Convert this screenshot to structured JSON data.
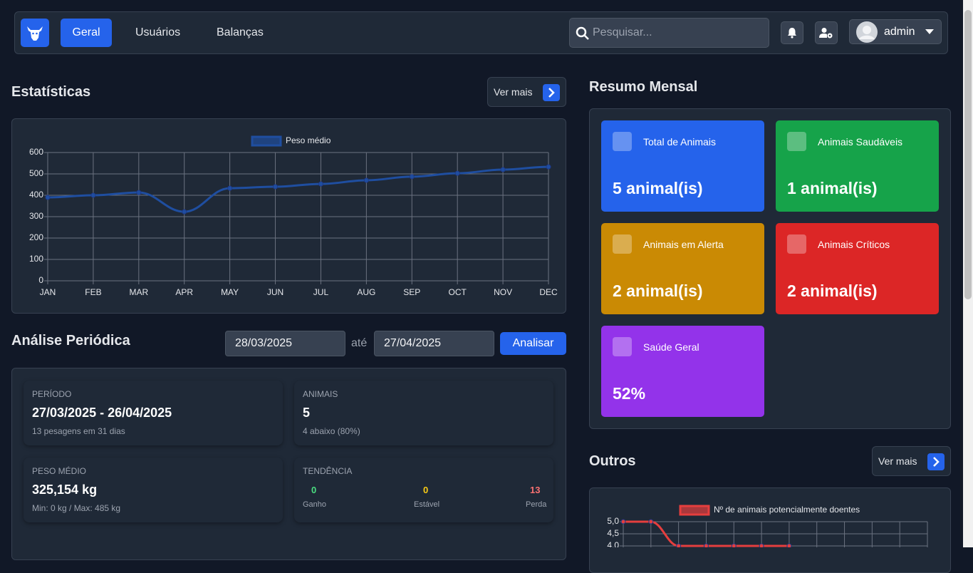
{
  "nav": {
    "links": [
      "Geral",
      "Usuários",
      "Balanças"
    ],
    "search_placeholder": "Pesquisar...",
    "user": "admin"
  },
  "statistics": {
    "title": "Estatísticas",
    "button": "Ver mais"
  },
  "summary": {
    "title": "Resumo Mensal",
    "cards": [
      {
        "label": "Total de Animais",
        "value": "5 animal(is)"
      },
      {
        "label": "Animais Saudáveis",
        "value": "1 animal(is)"
      },
      {
        "label": "Animais em Alerta",
        "value": "2 animal(is)"
      },
      {
        "label": "Animais Críticos",
        "value": "2 animal(is)"
      },
      {
        "label": "Saúde Geral",
        "value": "52%"
      }
    ]
  },
  "analysis": {
    "title": "Análise Periódica",
    "start": "28/03/2025",
    "separator": "até",
    "end": "27/04/2025",
    "button": "Analisar",
    "stats": [
      {
        "label": "PERÍODO",
        "value": "27/03/2025 - 26/04/2025",
        "note": "13 pesagens em 31 dias"
      },
      {
        "label": "ANIMAIS",
        "value": "5",
        "note": "4 abaixo (80%)"
      },
      {
        "label": "PESO MÉDIO",
        "value": "325,154 kg",
        "note": "Min: 0 kg / Max: 485 kg"
      }
    ],
    "trend": {
      "label": "TENDÊNCIA",
      "items": [
        {
          "value": "0",
          "label": "Ganho"
        },
        {
          "value": "0",
          "label": "Estável"
        },
        {
          "value": "13",
          "label": "Perda"
        }
      ]
    }
  },
  "others": {
    "title": "Outros",
    "button": "Ver mais"
  },
  "chart_data": [
    {
      "type": "line",
      "categories": [
        "JAN",
        "FEB",
        "MAR",
        "APR",
        "MAY",
        "JUN",
        "JUL",
        "AUG",
        "SEP",
        "OCT",
        "NOV",
        "DEC"
      ],
      "series": [
        {
          "name": "Peso médio",
          "color": "#1f4ea0",
          "values": [
            390,
            400,
            413,
            323,
            433,
            440,
            453,
            470,
            487,
            503,
            520,
            533
          ]
        }
      ],
      "ylim": [
        0,
        600
      ],
      "yticks": [
        0,
        100,
        200,
        300,
        400,
        500,
        600
      ],
      "grid": true
    },
    {
      "type": "line",
      "categories": [
        null,
        null,
        null,
        null,
        null,
        null,
        null,
        null,
        null,
        null,
        null,
        null
      ],
      "series": [
        {
          "name": "Nº de animais potencialmente doentes",
          "color": "#e53e3e",
          "values": [
            5,
            5,
            4,
            4,
            4,
            4,
            4,
            null,
            null,
            null,
            null,
            null
          ]
        }
      ],
      "ylim": [
        4,
        5
      ],
      "yticks": [
        {
          "value": 5,
          "label": "5,0"
        },
        {
          "value": 4.5,
          "label": "4,5"
        },
        {
          "value": 4,
          "label": "4,0"
        }
      ],
      "grid": true
    }
  ]
}
